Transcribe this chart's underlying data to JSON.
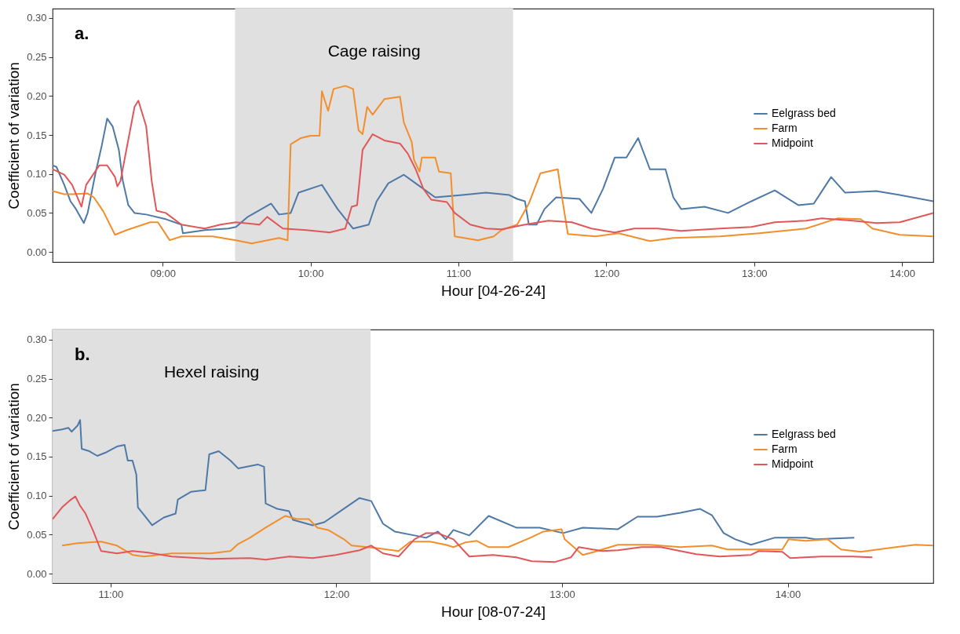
{
  "chart_data": [
    {
      "type": "line",
      "xlabel": "Hour [04-26-24]",
      "ylabel": "Coefficient of variation",
      "xlim": [
        8.256,
        14.211
      ],
      "ylim": [
        -0.013,
        0.312
      ],
      "xticks": [
        {
          "value": 9,
          "label": "09:00"
        },
        {
          "value": 10,
          "label": "10:00"
        },
        {
          "value": 11,
          "label": "11:00"
        },
        {
          "value": 12,
          "label": "12:00"
        },
        {
          "value": 13,
          "label": "13:00"
        },
        {
          "value": 14,
          "label": "14:00"
        }
      ],
      "yticks": [
        {
          "value": 0,
          "label": "0.00"
        },
        {
          "value": 0.05,
          "label": "0.05"
        },
        {
          "value": 0.1,
          "label": "0.10"
        },
        {
          "value": 0.15,
          "label": "0.15"
        },
        {
          "value": 0.2,
          "label": "0.20"
        },
        {
          "value": 0.25,
          "label": "0.25"
        },
        {
          "value": 0.3,
          "label": "0.30"
        }
      ],
      "grid": false,
      "legend": "top right",
      "annotations": [
        "a."
      ],
      "bands": [
        {
          "axis": "x",
          "from": 9.49,
          "to": 11.37,
          "label": "Cage raising",
          "color": "#e0e0e0"
        }
      ],
      "series": [
        {
          "name": "Eelgrass bed",
          "color": "#4e79a7",
          "x": [
            8.256,
            8.282,
            8.335,
            8.377,
            8.414,
            8.467,
            8.493,
            8.546,
            8.588,
            8.625,
            8.662,
            8.704,
            8.731,
            8.768,
            8.81,
            8.889,
            9.021,
            9.127,
            9.137,
            9.285,
            9.444,
            9.496,
            9.576,
            9.734,
            9.787,
            9.866,
            9.919,
            10.077,
            10.183,
            10.288,
            10.394,
            10.447,
            10.526,
            10.631,
            10.711,
            10.843,
            11.027,
            11.186,
            11.344,
            11.397,
            11.45,
            11.476,
            11.529,
            11.582,
            11.661,
            11.819,
            11.899,
            11.978,
            12.057,
            12.136,
            12.215,
            12.295,
            12.4,
            12.453,
            12.506,
            12.664,
            12.823,
            12.981,
            13.139,
            13.298,
            13.403,
            13.52,
            13.615,
            13.826,
            13.984,
            14.211
          ],
          "values": [
            0.111,
            0.109,
            0.086,
            0.065,
            0.055,
            0.037,
            0.05,
            0.101,
            0.136,
            0.171,
            0.161,
            0.131,
            0.091,
            0.06,
            0.05,
            0.048,
            0.042,
            0.035,
            0.024,
            0.028,
            0.03,
            0.032,
            0.045,
            0.062,
            0.048,
            0.05,
            0.076,
            0.086,
            0.055,
            0.03,
            0.035,
            0.065,
            0.088,
            0.099,
            0.088,
            0.07,
            0.073,
            0.076,
            0.073,
            0.068,
            0.065,
            0.035,
            0.035,
            0.055,
            0.07,
            0.068,
            0.05,
            0.081,
            0.121,
            0.121,
            0.146,
            0.106,
            0.106,
            0.07,
            0.055,
            0.058,
            0.05,
            0.065,
            0.079,
            0.06,
            0.062,
            0.096,
            0.076,
            0.078,
            0.073,
            0.065
          ]
        },
        {
          "name": "Farm",
          "color": "#f28e2b",
          "x": [
            8.256,
            8.335,
            8.388,
            8.493,
            8.535,
            8.599,
            8.678,
            8.757,
            8.916,
            8.968,
            9.048,
            9.127,
            9.338,
            9.496,
            9.602,
            9.787,
            9.845,
            9.866,
            9.935,
            9.998,
            10.061,
            10.077,
            10.119,
            10.156,
            10.235,
            10.288,
            10.325,
            10.352,
            10.383,
            10.42,
            10.499,
            10.605,
            10.631,
            10.684,
            10.7,
            10.737,
            10.753,
            10.843,
            10.869,
            10.948,
            10.975,
            11.133,
            11.239,
            11.291,
            11.397,
            11.476,
            11.555,
            11.672,
            11.687,
            11.74,
            11.925,
            12.083,
            12.295,
            12.453,
            12.77,
            13.034,
            13.192,
            13.351,
            13.562,
            13.72,
            13.799,
            13.984,
            14.211
          ],
          "values": [
            0.078,
            0.074,
            0.074,
            0.075,
            0.07,
            0.052,
            0.022,
            0.028,
            0.038,
            0.038,
            0.015,
            0.02,
            0.02,
            0.015,
            0.011,
            0.018,
            0.015,
            0.138,
            0.146,
            0.149,
            0.149,
            0.206,
            0.181,
            0.209,
            0.213,
            0.209,
            0.156,
            0.151,
            0.186,
            0.176,
            0.196,
            0.199,
            0.166,
            0.141,
            0.118,
            0.103,
            0.121,
            0.121,
            0.103,
            0.101,
            0.02,
            0.015,
            0.02,
            0.028,
            0.035,
            0.062,
            0.101,
            0.106,
            0.086,
            0.023,
            0.02,
            0.024,
            0.014,
            0.018,
            0.02,
            0.024,
            0.027,
            0.03,
            0.043,
            0.042,
            0.03,
            0.022,
            0.02
          ]
        },
        {
          "name": "Midpoint",
          "color": "#e15759",
          "x": [
            8.256,
            8.335,
            8.388,
            8.451,
            8.483,
            8.572,
            8.625,
            8.678,
            8.694,
            8.715,
            8.81,
            8.836,
            8.889,
            8.926,
            8.958,
            9.021,
            9.127,
            9.285,
            9.391,
            9.496,
            9.655,
            9.707,
            9.813,
            9.971,
            10.13,
            10.235,
            10.278,
            10.315,
            10.352,
            10.42,
            10.499,
            10.605,
            10.658,
            10.711,
            10.763,
            10.816,
            10.922,
            10.975,
            11.08,
            11.186,
            11.291,
            11.45,
            11.608,
            11.767,
            11.899,
            12.057,
            12.189,
            12.347,
            12.506,
            12.77,
            12.981,
            13.139,
            13.351,
            13.456,
            13.667,
            13.826,
            13.984,
            14.211
          ],
          "values": [
            0.106,
            0.099,
            0.086,
            0.058,
            0.086,
            0.111,
            0.111,
            0.096,
            0.084,
            0.091,
            0.186,
            0.194,
            0.161,
            0.091,
            0.053,
            0.05,
            0.035,
            0.03,
            0.035,
            0.038,
            0.035,
            0.045,
            0.03,
            0.028,
            0.025,
            0.03,
            0.058,
            0.06,
            0.131,
            0.151,
            0.143,
            0.139,
            0.126,
            0.106,
            0.081,
            0.067,
            0.064,
            0.05,
            0.035,
            0.03,
            0.029,
            0.035,
            0.04,
            0.038,
            0.03,
            0.025,
            0.03,
            0.03,
            0.027,
            0.03,
            0.032,
            0.038,
            0.04,
            0.043,
            0.04,
            0.037,
            0.038,
            0.05
          ]
        }
      ]
    },
    {
      "type": "line",
      "xlabel": "Hour [08-07-24]",
      "ylabel": "Coefficient of variation",
      "xlim": [
        10.743,
        14.645
      ],
      "ylim": [
        -0.012,
        0.313
      ],
      "xticks": [
        {
          "value": 11,
          "label": "11:00"
        },
        {
          "value": 12,
          "label": "12:00"
        },
        {
          "value": 13,
          "label": "13:00"
        },
        {
          "value": 14,
          "label": "14:00"
        }
      ],
      "yticks": [
        {
          "value": 0,
          "label": "0.00"
        },
        {
          "value": 0.05,
          "label": "0.05"
        },
        {
          "value": 0.1,
          "label": "0.10"
        },
        {
          "value": 0.15,
          "label": "0.15"
        },
        {
          "value": 0.2,
          "label": "0.20"
        },
        {
          "value": 0.25,
          "label": "0.25"
        },
        {
          "value": 0.3,
          "label": "0.30"
        }
      ],
      "grid": false,
      "legend": "top right",
      "annotations": [
        "b."
      ],
      "bands": [
        {
          "axis": "x",
          "from": 10.743,
          "to": 12.152,
          "label": "Hexel raising",
          "color": "#e0e0e0"
        }
      ],
      "series": [
        {
          "name": "Eelgrass bed",
          "color": "#4e79a7",
          "x": [
            10.743,
            10.785,
            10.813,
            10.827,
            10.854,
            10.865,
            10.872,
            10.906,
            10.941,
            10.976,
            11.028,
            11.062,
            11.076,
            11.097,
            11.114,
            11.121,
            11.149,
            11.184,
            11.236,
            11.288,
            11.298,
            11.357,
            11.42,
            11.437,
            11.479,
            11.531,
            11.565,
            11.652,
            11.68,
            11.687,
            11.739,
            11.791,
            11.808,
            11.895,
            11.947,
            12.017,
            12.103,
            12.155,
            12.207,
            12.259,
            12.346,
            12.398,
            12.45,
            12.485,
            12.519,
            12.589,
            12.675,
            12.797,
            12.901,
            13.005,
            13.092,
            13.248,
            13.334,
            13.421,
            13.525,
            13.612,
            13.664,
            13.716,
            13.768,
            13.837,
            13.941,
            14.08,
            14.122,
            14.295
          ],
          "values": [
            0.183,
            0.185,
            0.187,
            0.182,
            0.19,
            0.197,
            0.16,
            0.157,
            0.151,
            0.155,
            0.163,
            0.165,
            0.145,
            0.145,
            0.127,
            0.085,
            0.075,
            0.062,
            0.072,
            0.077,
            0.095,
            0.105,
            0.107,
            0.153,
            0.157,
            0.145,
            0.135,
            0.14,
            0.137,
            0.09,
            0.083,
            0.08,
            0.069,
            0.062,
            0.066,
            0.08,
            0.097,
            0.093,
            0.064,
            0.054,
            0.049,
            0.046,
            0.054,
            0.044,
            0.056,
            0.049,
            0.074,
            0.059,
            0.059,
            0.052,
            0.059,
            0.057,
            0.073,
            0.073,
            0.078,
            0.083,
            0.075,
            0.052,
            0.044,
            0.037,
            0.046,
            0.046,
            0.044,
            0.046
          ]
        },
        {
          "name": "Farm",
          "color": "#f28e2b",
          "x": [
            10.785,
            10.854,
            10.958,
            11.028,
            11.097,
            11.149,
            11.271,
            11.444,
            11.531,
            11.565,
            11.617,
            11.687,
            11.773,
            11.826,
            11.878,
            11.916,
            11.964,
            12.034,
            12.068,
            12.172,
            12.276,
            12.328,
            12.415,
            12.485,
            12.519,
            12.571,
            12.623,
            12.675,
            12.762,
            12.859,
            12.918,
            12.998,
            13.012,
            13.092,
            13.144,
            13.248,
            13.386,
            13.525,
            13.664,
            13.733,
            13.976,
            14.004,
            14.08,
            14.177,
            14.236,
            14.323,
            14.479,
            14.566,
            14.645
          ],
          "values": [
            0.036,
            0.039,
            0.041,
            0.036,
            0.024,
            0.022,
            0.026,
            0.026,
            0.029,
            0.038,
            0.046,
            0.059,
            0.074,
            0.07,
            0.07,
            0.059,
            0.056,
            0.044,
            0.036,
            0.033,
            0.029,
            0.041,
            0.041,
            0.037,
            0.034,
            0.04,
            0.042,
            0.034,
            0.034,
            0.046,
            0.054,
            0.057,
            0.044,
            0.024,
            0.028,
            0.037,
            0.037,
            0.034,
            0.036,
            0.031,
            0.031,
            0.044,
            0.042,
            0.044,
            0.031,
            0.028,
            0.034,
            0.037,
            0.036
          ]
        },
        {
          "name": "Midpoint",
          "color": "#e15759",
          "x": [
            10.743,
            10.785,
            10.82,
            10.844,
            10.865,
            10.889,
            10.924,
            10.958,
            11.028,
            11.097,
            11.166,
            11.271,
            11.444,
            11.617,
            11.687,
            11.791,
            11.895,
            11.999,
            12.103,
            12.155,
            12.207,
            12.276,
            12.346,
            12.398,
            12.45,
            12.519,
            12.589,
            12.693,
            12.797,
            12.866,
            12.97,
            13.04,
            13.074,
            13.178,
            13.248,
            13.352,
            13.438,
            13.594,
            13.699,
            13.837,
            13.872,
            13.976,
            14.011,
            14.149,
            14.288,
            14.375
          ],
          "values": [
            0.07,
            0.085,
            0.094,
            0.099,
            0.087,
            0.077,
            0.054,
            0.029,
            0.026,
            0.029,
            0.027,
            0.022,
            0.019,
            0.02,
            0.018,
            0.022,
            0.02,
            0.024,
            0.03,
            0.036,
            0.026,
            0.022,
            0.044,
            0.052,
            0.052,
            0.044,
            0.022,
            0.024,
            0.021,
            0.016,
            0.015,
            0.021,
            0.034,
            0.029,
            0.03,
            0.034,
            0.034,
            0.025,
            0.022,
            0.024,
            0.029,
            0.028,
            0.02,
            0.022,
            0.022,
            0.021
          ]
        }
      ]
    }
  ]
}
